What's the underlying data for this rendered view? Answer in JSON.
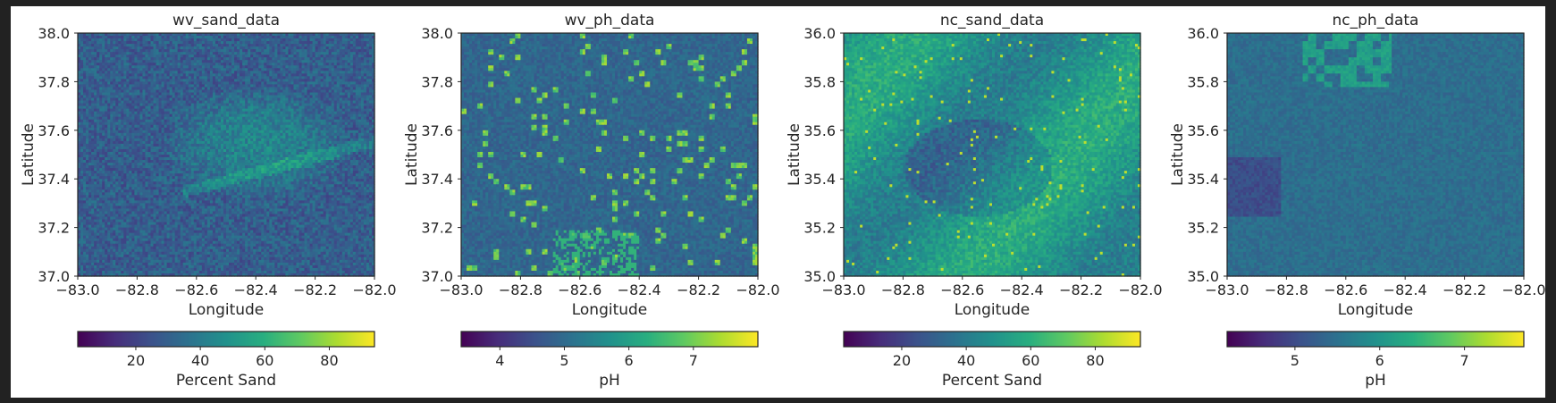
{
  "chart_data": [
    {
      "type": "heatmap",
      "title": "wv_sand_data",
      "xlabel": "Longitude",
      "ylabel": "Latitude",
      "xlim": [
        -83.0,
        -82.0
      ],
      "ylim": [
        37.0,
        38.0
      ],
      "x_ticks": [
        "−83.0",
        "−82.8",
        "−82.6",
        "−82.4",
        "−82.2",
        "−82.0"
      ],
      "y_ticks": [
        "37.0",
        "37.2",
        "37.4",
        "37.6",
        "37.8",
        "38.0"
      ],
      "colormap": "viridis",
      "colorbar": {
        "label": "Percent Sand",
        "range": [
          2,
          94
        ],
        "ticks": [
          "20",
          "40",
          "60",
          "80"
        ],
        "tick_values": [
          20,
          40,
          60,
          80
        ]
      },
      "grid": false
    },
    {
      "type": "heatmap",
      "title": "wv_ph_data",
      "xlabel": "Longitude",
      "ylabel": "Latitude",
      "xlim": [
        -83.0,
        -82.0
      ],
      "ylim": [
        37.0,
        38.0
      ],
      "x_ticks": [
        "−83.0",
        "−82.8",
        "−82.6",
        "−82.4",
        "−82.2",
        "−82.0"
      ],
      "y_ticks": [
        "37.0",
        "37.2",
        "37.4",
        "37.6",
        "37.8",
        "38.0"
      ],
      "colormap": "viridis",
      "colorbar": {
        "label": "pH",
        "range": [
          3.4,
          8.0
        ],
        "ticks": [
          "4",
          "5",
          "6",
          "7"
        ],
        "tick_values": [
          4,
          5,
          6,
          7
        ]
      },
      "grid": false
    },
    {
      "type": "heatmap",
      "title": "nc_sand_data",
      "xlabel": "Longitude",
      "ylabel": "Latitude",
      "xlim": [
        -83.0,
        -82.0
      ],
      "ylim": [
        35.0,
        36.0
      ],
      "x_ticks": [
        "−83.0",
        "−82.8",
        "−82.6",
        "−82.4",
        "−82.2",
        "−82.0"
      ],
      "y_ticks": [
        "35.0",
        "35.2",
        "35.4",
        "35.6",
        "35.8",
        "36.0"
      ],
      "colormap": "viridis",
      "colorbar": {
        "label": "Percent Sand",
        "range": [
          2,
          94
        ],
        "ticks": [
          "20",
          "40",
          "60",
          "80"
        ],
        "tick_values": [
          20,
          40,
          60,
          80
        ]
      },
      "grid": false
    },
    {
      "type": "heatmap",
      "title": "nc_ph_data",
      "xlabel": "Longitude",
      "ylabel": "Latitude",
      "xlim": [
        -83.0,
        -82.0
      ],
      "ylim": [
        35.0,
        36.0
      ],
      "x_ticks": [
        "−83.0",
        "−82.8",
        "−82.6",
        "−82.4",
        "−82.2",
        "−82.0"
      ],
      "y_ticks": [
        "35.0",
        "35.2",
        "35.4",
        "35.6",
        "35.8",
        "36.0"
      ],
      "colormap": "viridis",
      "colorbar": {
        "label": "pH",
        "range": [
          4.2,
          7.7
        ],
        "ticks": [
          "5",
          "6",
          "7"
        ],
        "tick_values": [
          5,
          6,
          7
        ]
      },
      "grid": false
    }
  ]
}
